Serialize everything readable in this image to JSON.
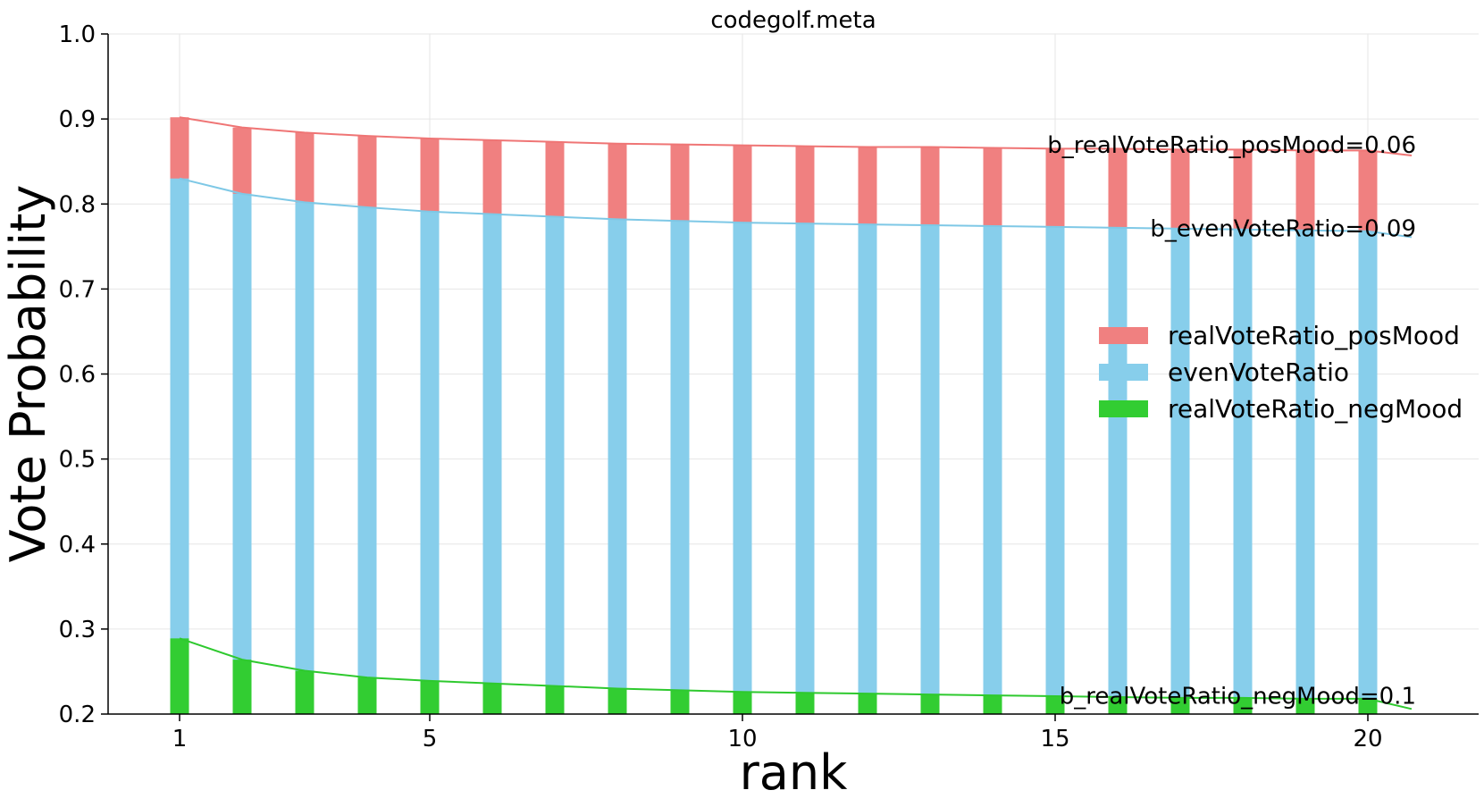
{
  "chart_data": {
    "type": "bar",
    "title": "codegolf.meta",
    "xlabel": "rank",
    "ylabel": "Vote Probability",
    "xlim": [
      0,
      22
    ],
    "ylim": [
      0.2,
      1.0
    ],
    "xticks": [
      1,
      5,
      10,
      15,
      20
    ],
    "yticks": [
      0.2,
      0.3,
      0.4,
      0.5,
      0.6,
      0.7,
      0.8,
      0.9,
      1.0
    ],
    "grid": true,
    "legend_position": "center-right",
    "x": [
      1,
      2,
      3,
      4,
      5,
      6,
      7,
      8,
      9,
      10,
      11,
      12,
      13,
      14,
      15,
      16,
      17,
      18,
      19,
      20
    ],
    "series": [
      {
        "name": "realVoteRatio_posMood",
        "color": "#f08080",
        "values": [
          0.902,
          0.89,
          0.884,
          0.88,
          0.877,
          0.875,
          0.873,
          0.871,
          0.87,
          0.869,
          0.868,
          0.867,
          0.867,
          0.866,
          0.865,
          0.865,
          0.864,
          0.864,
          0.863,
          0.863
        ],
        "fit_label": "b_realVoteRatio_posMood=0.06",
        "fit_end": 0.857
      },
      {
        "name": "evenVoteRatio",
        "color": "#87ceeb",
        "values": [
          0.83,
          0.812,
          0.802,
          0.796,
          0.791,
          0.788,
          0.785,
          0.782,
          0.78,
          0.778,
          0.777,
          0.776,
          0.775,
          0.774,
          0.773,
          0.772,
          0.771,
          0.77,
          0.769,
          0.768
        ],
        "fit_label": "b_evenVoteRatio=0.09",
        "fit_end": 0.761
      },
      {
        "name": "realVoteRatio_negMood",
        "color": "#32cd32",
        "values": [
          0.289,
          0.264,
          0.251,
          0.243,
          0.239,
          0.236,
          0.233,
          0.23,
          0.228,
          0.226,
          0.225,
          0.224,
          0.223,
          0.222,
          0.221,
          0.22,
          0.219,
          0.219,
          0.218,
          0.218
        ],
        "fit_label": "b_realVoteRatio_negMood=0.1",
        "fit_end": 0.206
      }
    ]
  }
}
